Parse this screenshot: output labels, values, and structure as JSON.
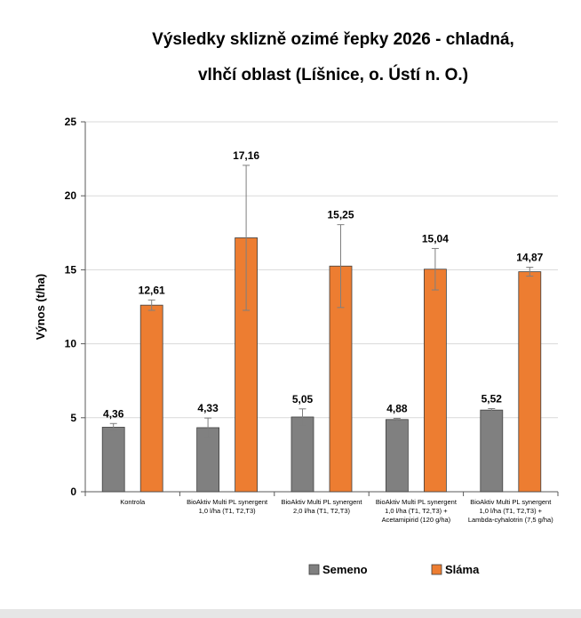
{
  "chart_data": {
    "type": "bar",
    "title_lines": [
      "Výsledky sklizně ozimé řepky 2026 - chladná,",
      "vlhčí oblast (Líšnice, o. Ústí n. O.)"
    ],
    "ylabel": "Výnos (t/ha)",
    "xlabel": "",
    "ylim": [
      0,
      25
    ],
    "yticks": [
      "0",
      "5",
      "10",
      "15",
      "20",
      "25"
    ],
    "grid": true,
    "legend_position": "bottom",
    "categories": [
      [
        "Kontrola"
      ],
      [
        "BioAktiv Multi PL synergent",
        "1,0 l/ha (T1, T2,T3)"
      ],
      [
        "BioAktiv Multi PL synergent",
        "2,0 l/ha (T1, T2,T3)"
      ],
      [
        "BioAktiv Multi PL synergent",
        "1,0 l/ha (T1, T2,T3) +",
        "Acetamipirid (120 g/ha)"
      ],
      [
        "BioAktiv Multi PL synergent",
        "1,0 l/ha (T1, T2,T3) +",
        "Lambda-cyhalotrin (7,5 g/ha)"
      ]
    ],
    "series": [
      {
        "name": "Semeno",
        "color": "#808080",
        "values": [
          4.36,
          4.33,
          5.05,
          4.88,
          5.52
        ],
        "labels": [
          "4,36",
          "4,33",
          "5,05",
          "4,88",
          "5,52"
        ],
        "errors": [
          0.25,
          0.65,
          0.55,
          0.08,
          0.1
        ]
      },
      {
        "name": "Sláma",
        "color": "#ed7d31",
        "values": [
          12.61,
          17.16,
          15.25,
          15.04,
          14.87
        ],
        "labels": [
          "12,61",
          "17,16",
          "15,25",
          "15,04",
          "14,87"
        ],
        "errors": [
          0.35,
          4.9,
          2.8,
          1.4,
          0.3
        ]
      }
    ]
  }
}
